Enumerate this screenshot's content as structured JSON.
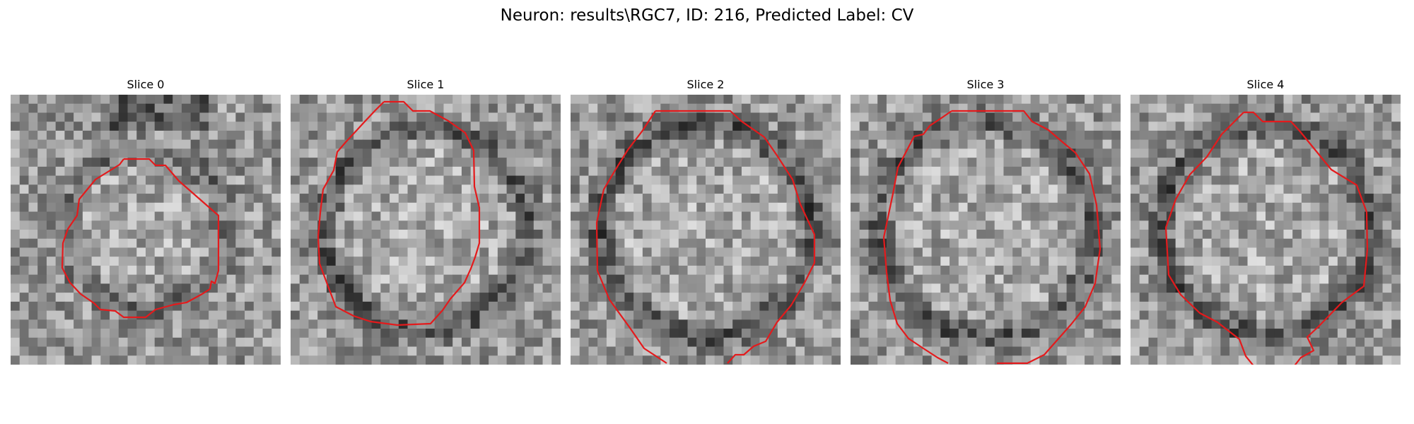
{
  "figure": {
    "title": "Neuron: results\\RGC7, ID: 216, Predicted Label: CV"
  },
  "panels": [
    {
      "title": "Slice 0"
    },
    {
      "title": "Slice 1"
    },
    {
      "title": "Slice 2"
    },
    {
      "title": "Slice 3"
    },
    {
      "title": "Slice 4"
    }
  ],
  "colors": {
    "contour": "#e41a1c",
    "background": "#ffffff"
  }
}
